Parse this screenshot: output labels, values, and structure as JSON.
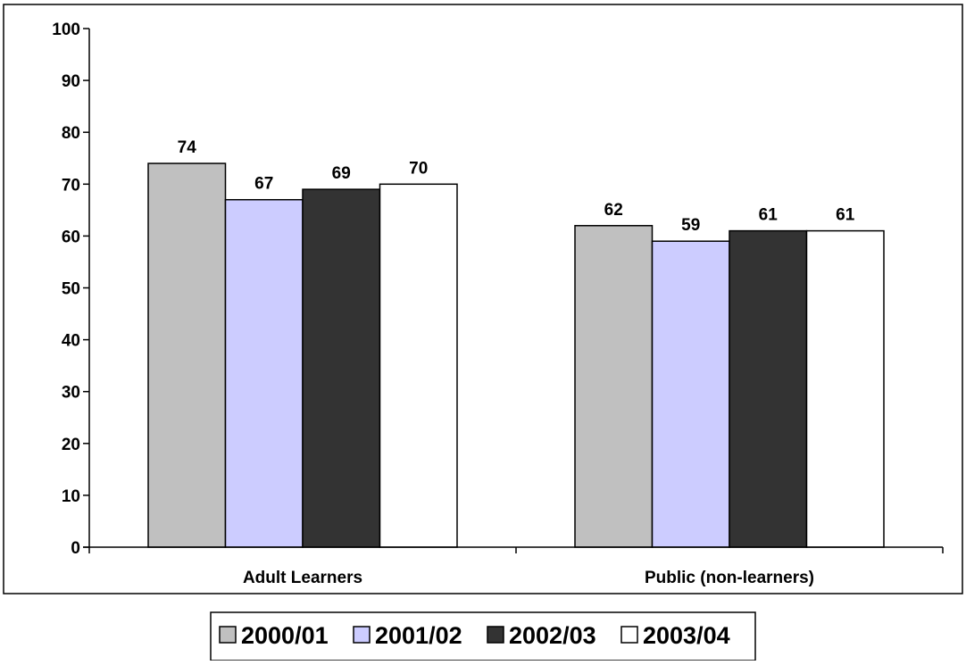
{
  "chart_data": {
    "type": "bar",
    "categories": [
      "Adult Learners",
      "Public (non-learners)"
    ],
    "series": [
      {
        "name": "2000/01",
        "values": [
          74,
          62
        ],
        "color": "#c0c0c0"
      },
      {
        "name": "2001/02",
        "values": [
          67,
          59
        ],
        "color": "#ccccff"
      },
      {
        "name": "2002/03",
        "values": [
          69,
          61
        ],
        "color": "#333333"
      },
      {
        "name": "2003/04",
        "values": [
          70,
          61
        ],
        "color": "#ffffff"
      }
    ],
    "ylim": [
      0,
      100
    ],
    "yticks": [
      0,
      10,
      20,
      30,
      40,
      50,
      60,
      70,
      80,
      90,
      100
    ],
    "grid": false,
    "legend_position": "bottom",
    "data_labels": true
  }
}
